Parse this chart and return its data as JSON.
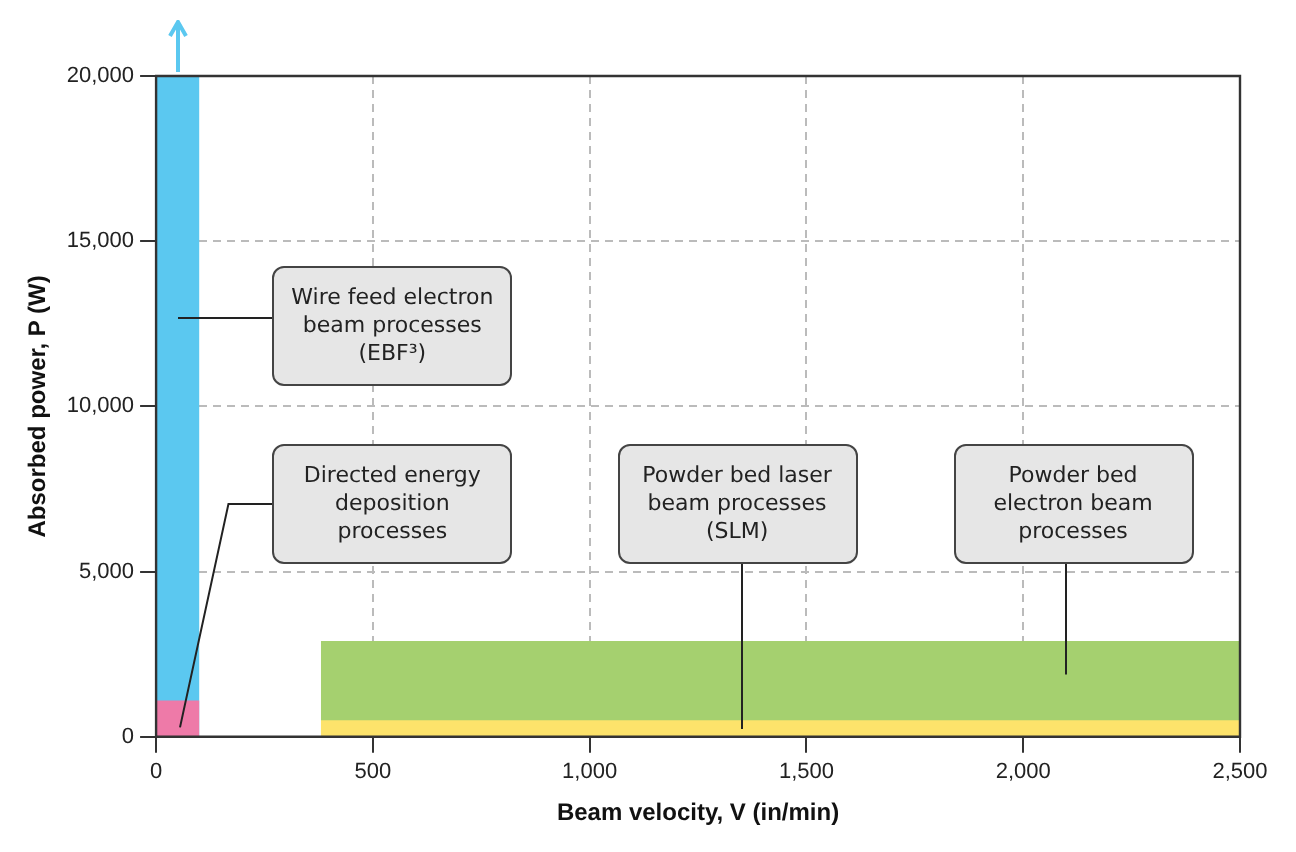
{
  "chart_data": {
    "type": "area",
    "xlabel": "Beam velocity, V (in/min)",
    "ylabel": "Absorbed power, P (W)",
    "series": [
      {
        "color": "#5bc8f0",
        "x": [
          0,
          100
        ],
        "values": [
          20000,
          20000
        ]
      },
      {
        "color": "#ee7aa8",
        "x": [
          0,
          100
        ],
        "values": [
          1100,
          1100
        ]
      },
      {
        "color": "#a5d06f",
        "x": [
          380,
          2500
        ],
        "values": [
          2900,
          2900
        ]
      },
      {
        "color": "#fde36b",
        "x": [
          380,
          2500
        ],
        "values": [
          500,
          500
        ]
      }
    ],
    "xlim": [
      0,
      2500
    ],
    "xticks": [
      {
        "value": 0,
        "label": "0"
      },
      {
        "value": 500,
        "label": "500"
      },
      {
        "value": 1000,
        "label": "1,000"
      },
      {
        "value": 1500,
        "label": "1,500"
      },
      {
        "value": 2000,
        "label": "2,000"
      },
      {
        "value": 2500,
        "label": "2,500"
      }
    ],
    "ylim": [
      0,
      20000
    ],
    "yticks": [
      {
        "value": 0,
        "label": "0"
      },
      {
        "value": 5000,
        "label": "5,000"
      },
      {
        "value": 10000,
        "label": "10,000"
      },
      {
        "value": 15000,
        "label": "15,000"
      },
      {
        "value": 20000,
        "label": "20,000"
      }
    ],
    "grid": true,
    "annotations": [
      "Wire feed electron beam processes (EBF³)",
      "Directed energy deposition processes",
      {
        "text": "Powder bed laser beam processes (SLM)",
        "x": 1350,
        "y": 250
      },
      "Powder bed electron beam processes"
    ]
  }
}
